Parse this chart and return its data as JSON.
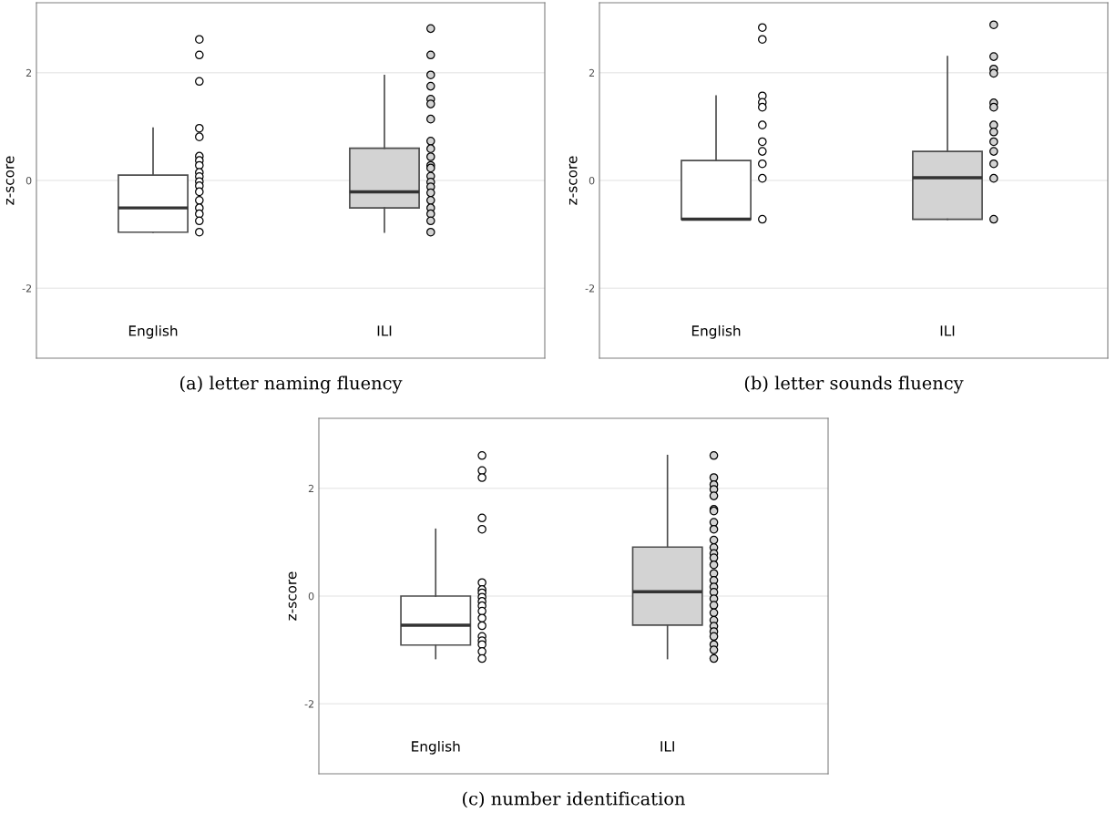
{
  "chart_data": [
    {
      "type": "box",
      "title": "(a) letter naming fluency",
      "ylabel": "z-score",
      "categories": [
        "English",
        "ILI"
      ],
      "ylim": [
        -3.3,
        3.3
      ],
      "yticks": [
        2,
        0,
        -2
      ],
      "grid": "y",
      "colors": [
        "#ffffff",
        "#d3d3d3"
      ],
      "boxes": [
        {
          "low": -0.96,
          "q1": -0.96,
          "median": -0.51,
          "q3": 0.1,
          "high": 0.97
        },
        {
          "low": -0.96,
          "q1": -0.51,
          "median": -0.21,
          "q3": 0.6,
          "high": 1.95
        }
      ],
      "series": [
        {
          "type": "scatter",
          "color": "#ffffff",
          "x": [
            "English",
            "English",
            "English",
            "English",
            "English",
            "English",
            "English",
            "English",
            "English",
            "English",
            "English",
            "English",
            "English",
            "English",
            "English",
            "English",
            "English",
            "English"
          ],
          "values": [
            2.62,
            2.33,
            1.84,
            0.97,
            0.81,
            0.45,
            0.37,
            0.28,
            0.15,
            0.07,
            -0.02,
            -0.1,
            -0.21,
            -0.37,
            -0.51,
            -0.62,
            -0.75,
            -0.96
          ]
        },
        {
          "type": "scatter",
          "color": "#d3d3d3",
          "x": [
            "ILI",
            "ILI",
            "ILI",
            "ILI",
            "ILI",
            "ILI",
            "ILI",
            "ILI",
            "ILI",
            "ILI",
            "ILI",
            "ILI",
            "ILI",
            "ILI",
            "ILI",
            "ILI",
            "ILI",
            "ILI",
            "ILI",
            "ILI",
            "ILI"
          ],
          "values": [
            2.82,
            2.33,
            1.96,
            1.75,
            1.51,
            1.42,
            1.14,
            0.73,
            0.59,
            0.44,
            0.28,
            0.23,
            0.08,
            -0.03,
            -0.12,
            -0.23,
            -0.37,
            -0.51,
            -0.62,
            -0.75,
            -0.96
          ]
        }
      ]
    },
    {
      "type": "box",
      "title": "(b) letter sounds fluency",
      "ylabel": "z-score",
      "categories": [
        "English",
        "ILI"
      ],
      "ylim": [
        -3.3,
        3.3
      ],
      "yticks": [
        2,
        0,
        -2
      ],
      "grid": "y",
      "colors": [
        "#ffffff",
        "#d3d3d3"
      ],
      "boxes": [
        {
          "low": -0.72,
          "q1": -0.72,
          "median": -0.72,
          "q3": 0.37,
          "high": 1.57
        },
        {
          "low": -0.72,
          "q1": -0.72,
          "median": 0.05,
          "q3": 0.54,
          "high": 2.3
        }
      ],
      "series": [
        {
          "type": "scatter",
          "color": "#ffffff",
          "x": [
            "English",
            "English",
            "English",
            "English",
            "English",
            "English",
            "English",
            "English",
            "English",
            "English",
            "English"
          ],
          "values": [
            2.84,
            2.62,
            1.57,
            1.45,
            1.36,
            1.03,
            0.72,
            0.54,
            0.31,
            0.04,
            -0.72
          ]
        },
        {
          "type": "scatter",
          "color": "#d3d3d3",
          "x": [
            "ILI",
            "ILI",
            "ILI",
            "ILI",
            "ILI",
            "ILI",
            "ILI",
            "ILI",
            "ILI",
            "ILI",
            "ILI",
            "ILI",
            "ILI"
          ],
          "values": [
            2.89,
            2.3,
            2.07,
            1.99,
            1.44,
            1.36,
            1.03,
            0.9,
            0.72,
            0.54,
            0.31,
            0.04,
            -0.72
          ]
        }
      ]
    },
    {
      "type": "box",
      "title": "(c) number identification",
      "ylabel": "z-score",
      "categories": [
        "English",
        "ILI"
      ],
      "ylim": [
        -3.3,
        3.3
      ],
      "yticks": [
        2,
        0,
        -2
      ],
      "grid": "y",
      "colors": [
        "#ffffff",
        "#d3d3d3"
      ],
      "boxes": [
        {
          "low": -1.16,
          "q1": -0.91,
          "median": -0.54,
          "q3": 0.0,
          "high": 1.24
        },
        {
          "low": -1.16,
          "q1": -0.54,
          "median": 0.08,
          "q3": 0.91,
          "high": 2.61
        }
      ],
      "series": [
        {
          "type": "scatter",
          "color": "#ffffff",
          "x": [
            "English",
            "English",
            "English",
            "English",
            "English",
            "English",
            "English",
            "English",
            "English",
            "English",
            "English",
            "English",
            "English",
            "English",
            "English",
            "English",
            "English",
            "English",
            "English"
          ],
          "values": [
            2.61,
            2.33,
            2.2,
            1.45,
            1.24,
            0.25,
            0.12,
            0.06,
            -0.02,
            -0.1,
            -0.18,
            -0.28,
            -0.41,
            -0.55,
            -0.75,
            -0.83,
            -0.9,
            -1.03,
            -1.16
          ]
        },
        {
          "type": "scatter",
          "color": "#d3d3d3",
          "x": [
            "ILI",
            "ILI",
            "ILI",
            "ILI",
            "ILI",
            "ILI",
            "ILI",
            "ILI",
            "ILI",
            "ILI",
            "ILI",
            "ILI",
            "ILI",
            "ILI",
            "ILI",
            "ILI",
            "ILI",
            "ILI",
            "ILI",
            "ILI",
            "ILI",
            "ILI",
            "ILI",
            "ILI",
            "ILI",
            "ILI",
            "ILI",
            "ILI"
          ],
          "values": [
            2.61,
            2.2,
            2.07,
            1.98,
            1.86,
            1.61,
            1.58,
            1.37,
            1.24,
            1.04,
            0.9,
            0.79,
            0.71,
            0.58,
            0.42,
            0.29,
            0.17,
            0.07,
            -0.05,
            -0.17,
            -0.31,
            -0.45,
            -0.56,
            -0.66,
            -0.75,
            -0.9,
            -1.0,
            -1.16
          ]
        }
      ]
    }
  ]
}
